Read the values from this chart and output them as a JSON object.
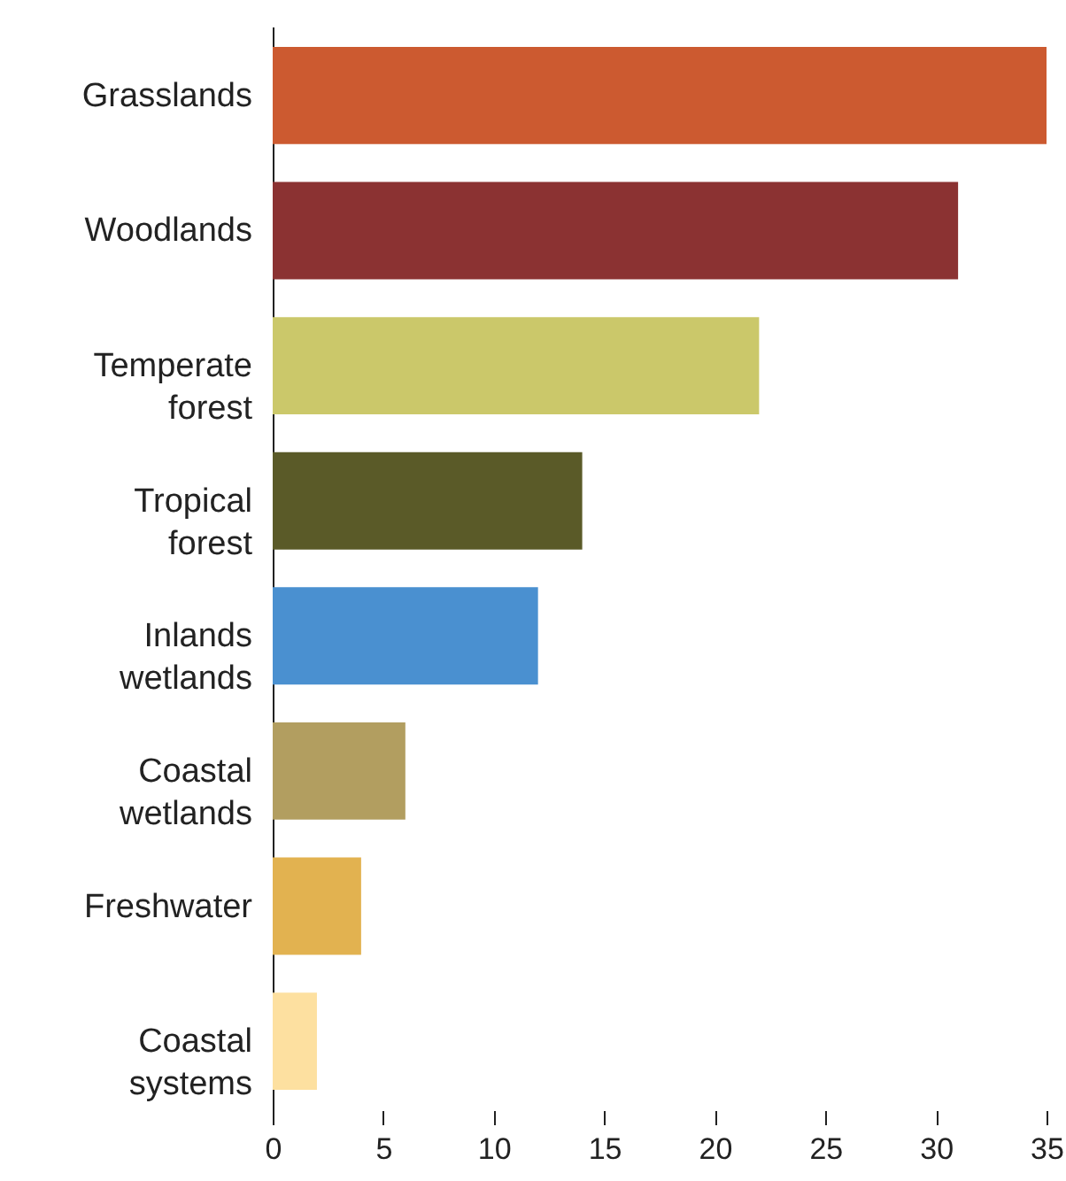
{
  "chart_data": {
    "type": "bar",
    "orientation": "horizontal",
    "categories": [
      "Grasslands",
      "Woodlands",
      "Temperate forest",
      "Tropical forest",
      "Inlands wetlands",
      "Coastal wetlands",
      "Freshwater",
      "Coastal systems"
    ],
    "values": [
      35,
      31,
      22,
      14,
      12,
      6,
      4,
      2
    ],
    "colors": [
      "#cc5a30",
      "#8b3232",
      "#cbc86a",
      "#5a5a28",
      "#4a90d0",
      "#b29e60",
      "#e2b250",
      "#fde0a0"
    ],
    "xlim": [
      0,
      35
    ],
    "xticks": [
      0,
      5,
      10,
      15,
      20,
      25,
      30,
      35
    ],
    "grid": false
  }
}
